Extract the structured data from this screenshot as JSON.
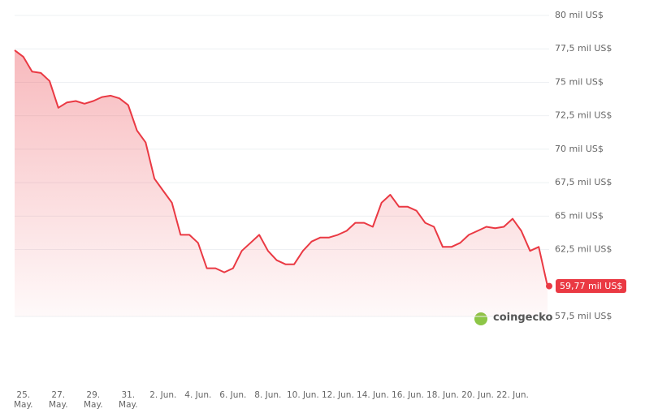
{
  "chart_data": {
    "type": "line",
    "categories": [
      null,
      "25.\nMay.",
      null,
      null,
      null,
      "27.\nMay.",
      null,
      null,
      null,
      "29.\nMay.",
      null,
      null,
      null,
      "31.\nMay.",
      null,
      null,
      null,
      "2. Jun.",
      null,
      null,
      null,
      "4. Jun.",
      null,
      null,
      null,
      "6. Jun.",
      null,
      null,
      null,
      "8. Jun.",
      null,
      null,
      null,
      "10. Jun.",
      null,
      null,
      null,
      "12. Jun.",
      null,
      null,
      null,
      "14. Jun.",
      null,
      null,
      null,
      "16. Jun.",
      null,
      null,
      null,
      "18. Jun.",
      null,
      null,
      null,
      "20. Jun.",
      null,
      null,
      null,
      "22. Jun.",
      null,
      null,
      null,
      null
    ],
    "series": [
      {
        "color": "#ea3943",
        "values": [
          77.4,
          76.9,
          75.8,
          75.7,
          75.1,
          73.1,
          73.5,
          73.6,
          73.4,
          73.6,
          73.9,
          74.0,
          73.8,
          73.3,
          71.4,
          70.5,
          67.8,
          66.9,
          66.0,
          63.6,
          63.6,
          63.0,
          61.1,
          61.1,
          60.8,
          61.1,
          62.4,
          63.0,
          63.6,
          62.4,
          61.7,
          61.4,
          61.4,
          62.4,
          63.1,
          63.4,
          63.4,
          63.6,
          63.9,
          64.5,
          64.5,
          64.2,
          66.0,
          66.6,
          65.7,
          65.7,
          65.4,
          64.5,
          64.2,
          62.7,
          62.7,
          63.0,
          63.6,
          63.9,
          64.2,
          64.1,
          64.2,
          64.8,
          63.9,
          62.4,
          62.7,
          59.77
        ],
        "last_label": "59,77 mil US$"
      }
    ],
    "ylim": [
      57.5,
      80
    ],
    "yticks": [
      {
        "value": 57.5,
        "label": "57,5 mil US$"
      },
      {
        "value": 62.5,
        "label": "62,5 mil US$"
      },
      {
        "value": 65,
        "label": "65 mil US$"
      },
      {
        "value": 67.5,
        "label": "67,5 mil US$"
      },
      {
        "value": 70,
        "label": "70 mil US$"
      },
      {
        "value": 72.5,
        "label": "72,5 mil US$"
      },
      {
        "value": 75,
        "label": "75 mil US$"
      },
      {
        "value": 77.5,
        "label": "77,5 mil US$"
      },
      {
        "value": 80,
        "label": "80 mil US$"
      }
    ],
    "grid": true
  },
  "watermark": "coingecko"
}
